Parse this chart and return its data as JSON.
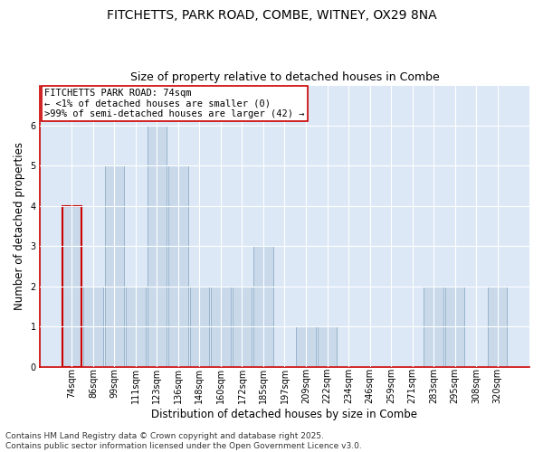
{
  "title_line1": "FITCHETTS, PARK ROAD, COMBE, WITNEY, OX29 8NA",
  "title_line2": "Size of property relative to detached houses in Combe",
  "categories": [
    "74sqm",
    "86sqm",
    "99sqm",
    "111sqm",
    "123sqm",
    "136sqm",
    "148sqm",
    "160sqm",
    "172sqm",
    "185sqm",
    "197sqm",
    "209sqm",
    "222sqm",
    "234sqm",
    "246sqm",
    "259sqm",
    "271sqm",
    "283sqm",
    "295sqm",
    "308sqm",
    "320sqm"
  ],
  "values": [
    4,
    2,
    5,
    2,
    6,
    5,
    2,
    2,
    2,
    3,
    0,
    1,
    1,
    0,
    0,
    0,
    0,
    2,
    2,
    0,
    2
  ],
  "highlight_index": 0,
  "bar_color": "#c9d9ea",
  "bar_edge_color": "#96b4cc",
  "highlight_edge_color": "#cc0000",
  "highlight_linewidth": 1.5,
  "annotation_text": "FITCHETTS PARK ROAD: 74sqm\n← <1% of detached houses are smaller (0)\n>99% of semi-detached houses are larger (42) →",
  "annotation_box_edgecolor": "#cc0000",
  "annotation_box_facecolor": "white",
  "xlabel": "Distribution of detached houses by size in Combe",
  "ylabel": "Number of detached properties",
  "ylim_max": 7,
  "yticks": [
    0,
    1,
    2,
    3,
    4,
    5,
    6
  ],
  "footnote": "Contains HM Land Registry data © Crown copyright and database right 2025.\nContains public sector information licensed under the Open Government Licence v3.0.",
  "bg_color": "#dce8f5",
  "plot_bg_color": "#dce8f5",
  "grid_color": "#ffffff",
  "left_spine_color": "#cc0000",
  "bottom_spine_color": "#cc0000",
  "title1_fontsize": 10,
  "title2_fontsize": 9,
  "label_fontsize": 8.5,
  "tick_fontsize": 7,
  "annotation_fontsize": 7.5,
  "footnote_fontsize": 6.5
}
